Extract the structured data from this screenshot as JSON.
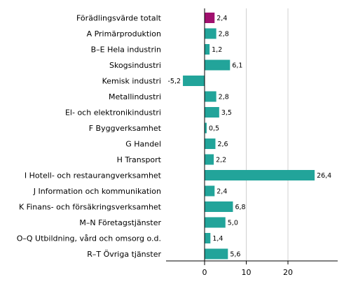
{
  "chart_data": {
    "type": "bar",
    "orientation": "horizontal",
    "title": "",
    "xlabel": "",
    "ylabel": "",
    "xlim": [
      -9,
      32
    ],
    "xticks": [
      0,
      10,
      20
    ],
    "grid": "vertical",
    "legend": "none",
    "categories": [
      "Förädlingsvärde totalt",
      "A Primärproduktion",
      "B–E Hela industrin",
      "Skogsindustri",
      "Kemisk industri",
      "Metallindustri",
      "El- och elektronikindustri",
      "F Byggverksamhet",
      "G Handel",
      "H Transport",
      "I Hotell- och restaurangverksamhet",
      "J Information och kommunikation",
      "K Finans- och försäkringsverksamhet",
      "M–N Företagstjänster",
      "O–Q Utbildning, vård och omsorg o.d.",
      "R–T Övriga tjänster"
    ],
    "values": [
      2.4,
      2.8,
      1.2,
      6.1,
      -5.2,
      2.8,
      3.5,
      0.5,
      2.6,
      2.2,
      26.4,
      2.4,
      6.8,
      5.0,
      1.4,
      5.6
    ],
    "value_labels": [
      "2,4",
      "2,8",
      "1,2",
      "6,1",
      "-5,2",
      "2,8",
      "3,5",
      "0,5",
      "2,6",
      "2,2",
      "26,4",
      "2,4",
      "6,8",
      "5,0",
      "1,4",
      "5,6"
    ],
    "colors": {
      "highlight": "#a0106e",
      "bar": "#22a49a",
      "grid": "#d0d0d0",
      "axis": "#000000"
    },
    "highlight_index": 0
  }
}
